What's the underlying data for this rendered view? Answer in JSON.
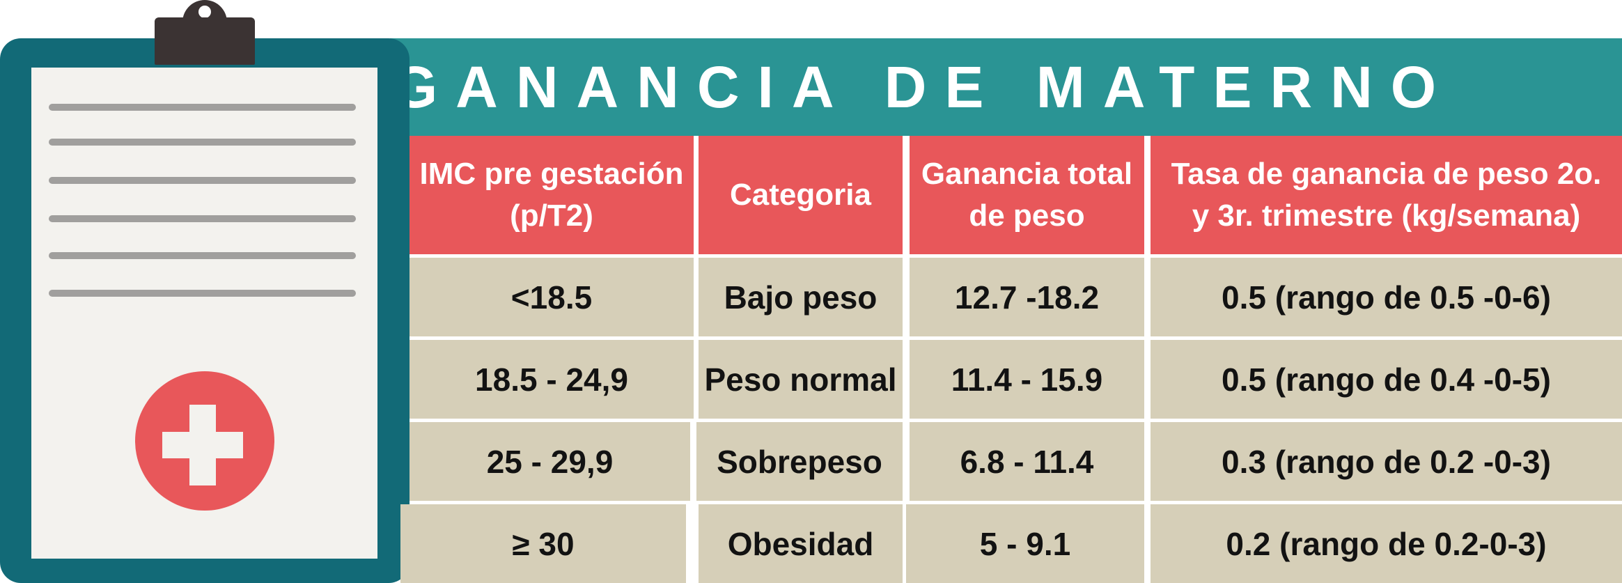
{
  "title": "GANANCIA DE MATERNO",
  "colors": {
    "band": "#2a9494",
    "header": "#e8575a",
    "body": "#d6cfb8",
    "clipboard": "#126a77",
    "sheet": "#f3f2ee",
    "cross_circle": "#e8575a"
  },
  "icons": [
    "clipboard-icon",
    "medical-cross-icon"
  ],
  "table": {
    "headers": [
      {
        "line1": "IMC pre gestación",
        "line2": "(p/T2)"
      },
      {
        "line1": "Categoria",
        "line2": ""
      },
      {
        "line1": "Ganancia total",
        "line2": "de peso"
      },
      {
        "line1": "Tasa de ganancia de peso 2o.",
        "line2": "y 3r. trimestre (kg/semana)"
      }
    ],
    "rows": [
      [
        "<18.5",
        "Bajo peso",
        "12.7 -18.2",
        "0.5 (rango de 0.5 -0-6)"
      ],
      [
        "18.5 - 24,9",
        "Peso normal",
        "11.4 - 15.9",
        "0.5 (rango de 0.4 -0-5)"
      ],
      [
        "25 - 29,9",
        "Sobrepeso",
        "6.8 - 11.4",
        "0.3 (rango de 0.2 -0-3)"
      ],
      [
        "≥ 30",
        "Obesidad",
        "5 - 9.1",
        "0.2 (rango de 0.2-0-3)"
      ]
    ]
  }
}
